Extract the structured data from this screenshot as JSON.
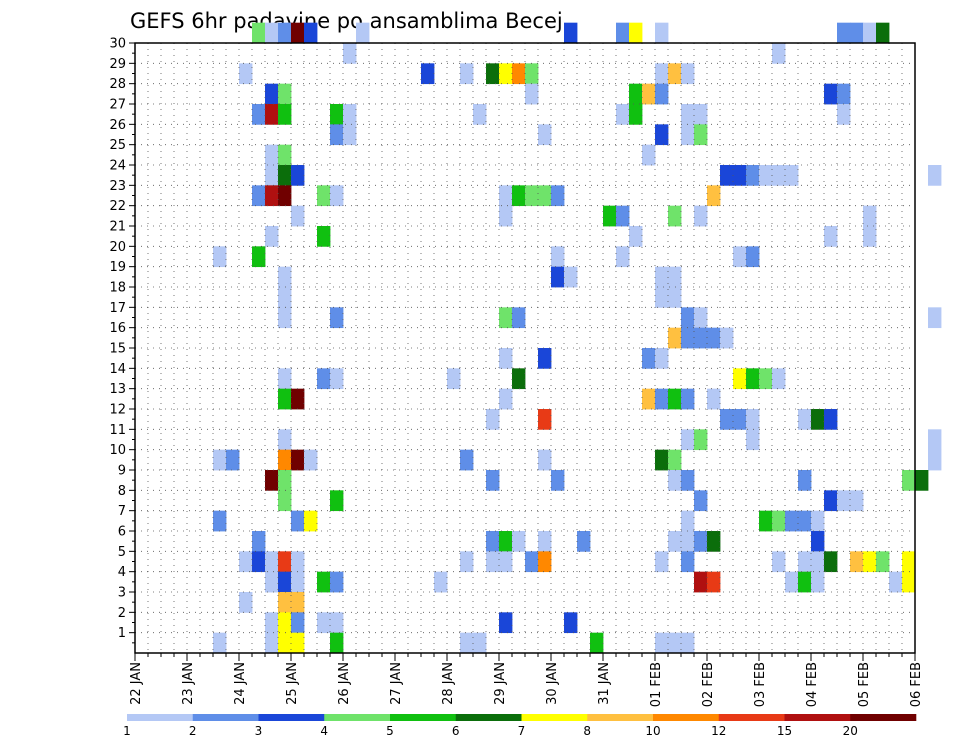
{
  "chart_data": {
    "type": "heatmap",
    "title": "GEFS 6hr padavine po ansamblima Becej",
    "xlabel": "",
    "ylabel": "",
    "x_start": "22 JAN 00Z",
    "x_step_hours": 6,
    "x_end": "06 FEB 00Z",
    "x_tick_labels": [
      "22 JAN",
      "23 JAN",
      "24 JAN",
      "25 JAN",
      "26 JAN",
      "27 JAN",
      "28 JAN",
      "29 JAN",
      "30 JAN",
      "31 JAN",
      "01 FEB",
      "02 FEB",
      "03 FEB",
      "04 FEB",
      "05 FEB",
      "06 FEB"
    ],
    "y_tick_labels": [
      "1",
      "2",
      "3",
      "4",
      "5",
      "6",
      "7",
      "8",
      "9",
      "10",
      "11",
      "12",
      "13",
      "14",
      "15",
      "16",
      "17",
      "18",
      "19",
      "20",
      "21",
      "22",
      "23",
      "24",
      "25",
      "26",
      "27",
      "28",
      "29",
      "30"
    ],
    "ylim": [
      0,
      30
    ],
    "grid": true,
    "colorbar": {
      "levels": [
        "1",
        "2",
        "3",
        "4",
        "5",
        "6",
        "7",
        "8",
        "10",
        "12",
        "15",
        "20"
      ],
      "colors": [
        "#b4c8f5",
        "#5f8ee8",
        "#1a46d8",
        "#6fe36a",
        "#10c010",
        "#0b6e0b",
        "#ffff00",
        "#ffc040",
        "#ff8800",
        "#e83a16",
        "#b01010",
        "#700000"
      ]
    },
    "cells": [
      {
        "m": 30,
        "c": [
          [
            9,
            3
          ],
          [
            10,
            0
          ],
          [
            11,
            1
          ],
          [
            12,
            11
          ],
          [
            13,
            2
          ],
          [
            17,
            0
          ],
          [
            33,
            2
          ],
          [
            37,
            1
          ],
          [
            38,
            6
          ],
          [
            40,
            0
          ],
          [
            54,
            1
          ],
          [
            55,
            1
          ],
          [
            56,
            0
          ],
          [
            57,
            5
          ]
        ]
      },
      {
        "m": 29,
        "c": [
          [
            16,
            0
          ],
          [
            49,
            0
          ]
        ]
      },
      {
        "m": 28,
        "c": [
          [
            8,
            0
          ],
          [
            22,
            2
          ],
          [
            25,
            0
          ],
          [
            27,
            5
          ],
          [
            28,
            6
          ],
          [
            29,
            8
          ],
          [
            30,
            3
          ],
          [
            40,
            0
          ],
          [
            41,
            7
          ],
          [
            42,
            0
          ]
        ]
      },
      {
        "m": 27,
        "c": [
          [
            10,
            2
          ],
          [
            11,
            3
          ],
          [
            30,
            0
          ],
          [
            38,
            4
          ],
          [
            39,
            7
          ],
          [
            40,
            1
          ],
          [
            53,
            2
          ],
          [
            54,
            1
          ]
        ]
      },
      {
        "m": 26,
        "c": [
          [
            9,
            1
          ],
          [
            10,
            10
          ],
          [
            11,
            4
          ],
          [
            15,
            4
          ],
          [
            16,
            0
          ],
          [
            26,
            0
          ],
          [
            37,
            0
          ],
          [
            38,
            4
          ],
          [
            42,
            0
          ],
          [
            43,
            0
          ],
          [
            54,
            0
          ]
        ]
      },
      {
        "m": 25,
        "c": [
          [
            15,
            1
          ],
          [
            16,
            0
          ],
          [
            31,
            0
          ],
          [
            40,
            2
          ],
          [
            42,
            0
          ],
          [
            43,
            3
          ]
        ]
      },
      {
        "m": 24,
        "c": [
          [
            10,
            0
          ],
          [
            11,
            3
          ],
          [
            39,
            0
          ]
        ]
      },
      {
        "m": 23,
        "c": [
          [
            10,
            0
          ],
          [
            11,
            5
          ],
          [
            12,
            2
          ],
          [
            45,
            2
          ],
          [
            46,
            2
          ],
          [
            47,
            1
          ],
          [
            48,
            0
          ],
          [
            49,
            0
          ],
          [
            50,
            0
          ],
          [
            61,
            0
          ]
        ]
      },
      {
        "m": 22,
        "c": [
          [
            9,
            1
          ],
          [
            10,
            10
          ],
          [
            11,
            11
          ],
          [
            14,
            3
          ],
          [
            15,
            0
          ],
          [
            28,
            0
          ],
          [
            29,
            4
          ],
          [
            30,
            3
          ],
          [
            31,
            3
          ],
          [
            32,
            1
          ],
          [
            44,
            7
          ]
        ]
      },
      {
        "m": 21,
        "c": [
          [
            12,
            0
          ],
          [
            28,
            0
          ],
          [
            36,
            4
          ],
          [
            37,
            1
          ],
          [
            41,
            3
          ],
          [
            43,
            0
          ],
          [
            56,
            0
          ]
        ]
      },
      {
        "m": 20,
        "c": [
          [
            10,
            0
          ],
          [
            14,
            4
          ],
          [
            38,
            0
          ],
          [
            53,
            0
          ],
          [
            56,
            0
          ]
        ]
      },
      {
        "m": 19,
        "c": [
          [
            6,
            0
          ],
          [
            9,
            4
          ],
          [
            32,
            0
          ],
          [
            37,
            0
          ],
          [
            46,
            0
          ],
          [
            47,
            1
          ]
        ]
      },
      {
        "m": 18,
        "c": [
          [
            11,
            0
          ],
          [
            32,
            2
          ],
          [
            33,
            0
          ],
          [
            40,
            0
          ],
          [
            41,
            0
          ]
        ]
      },
      {
        "m": 17,
        "c": [
          [
            11,
            0
          ],
          [
            40,
            0
          ],
          [
            41,
            0
          ]
        ]
      },
      {
        "m": 16,
        "c": [
          [
            11,
            0
          ],
          [
            15,
            1
          ],
          [
            28,
            3
          ],
          [
            29,
            1
          ],
          [
            42,
            1
          ],
          [
            43,
            0
          ],
          [
            61,
            0
          ]
        ]
      },
      {
        "m": 15,
        "c": [
          [
            41,
            7
          ],
          [
            42,
            1
          ],
          [
            43,
            1
          ],
          [
            44,
            1
          ],
          [
            45,
            0
          ]
        ]
      },
      {
        "m": 14,
        "c": [
          [
            28,
            0
          ],
          [
            31,
            2
          ],
          [
            39,
            1
          ],
          [
            40,
            0
          ]
        ]
      },
      {
        "m": 13,
        "c": [
          [
            11,
            0
          ],
          [
            14,
            1
          ],
          [
            15,
            0
          ],
          [
            24,
            0
          ],
          [
            29,
            5
          ],
          [
            46,
            6
          ],
          [
            47,
            4
          ],
          [
            48,
            3
          ],
          [
            49,
            0
          ]
        ]
      },
      {
        "m": 12,
        "c": [
          [
            11,
            4
          ],
          [
            12,
            11
          ],
          [
            28,
            0
          ],
          [
            39,
            7
          ],
          [
            40,
            1
          ],
          [
            41,
            4
          ],
          [
            42,
            1
          ],
          [
            44,
            0
          ]
        ]
      },
      {
        "m": 11,
        "c": [
          [
            27,
            0
          ],
          [
            31,
            9
          ],
          [
            45,
            1
          ],
          [
            46,
            1
          ],
          [
            47,
            0
          ],
          [
            51,
            0
          ],
          [
            52,
            5
          ],
          [
            53,
            2
          ]
        ]
      },
      {
        "m": 10,
        "c": [
          [
            11,
            0
          ],
          [
            42,
            0
          ],
          [
            43,
            3
          ],
          [
            47,
            0
          ],
          [
            61,
            0
          ]
        ]
      },
      {
        "m": 9,
        "c": [
          [
            6,
            0
          ],
          [
            7,
            1
          ],
          [
            11,
            8
          ],
          [
            12,
            11
          ],
          [
            13,
            0
          ],
          [
            25,
            1
          ],
          [
            31,
            0
          ],
          [
            40,
            5
          ],
          [
            41,
            3
          ],
          [
            61,
            0
          ]
        ]
      },
      {
        "m": 8,
        "c": [
          [
            10,
            11
          ],
          [
            11,
            3
          ],
          [
            27,
            1
          ],
          [
            32,
            1
          ],
          [
            41,
            0
          ],
          [
            42,
            1
          ],
          [
            51,
            1
          ],
          [
            59,
            3
          ],
          [
            60,
            5
          ]
        ]
      },
      {
        "m": 7,
        "c": [
          [
            11,
            3
          ],
          [
            15,
            4
          ],
          [
            43,
            1
          ],
          [
            53,
            2
          ],
          [
            54,
            0
          ],
          [
            55,
            0
          ]
        ]
      },
      {
        "m": 6,
        "c": [
          [
            6,
            1
          ],
          [
            12,
            1
          ],
          [
            13,
            6
          ],
          [
            42,
            0
          ],
          [
            48,
            4
          ],
          [
            49,
            3
          ],
          [
            50,
            1
          ],
          [
            51,
            1
          ],
          [
            52,
            0
          ]
        ]
      },
      {
        "m": 5,
        "c": [
          [
            9,
            1
          ],
          [
            27,
            1
          ],
          [
            28,
            4
          ],
          [
            29,
            0
          ],
          [
            31,
            0
          ],
          [
            34,
            1
          ],
          [
            41,
            0
          ],
          [
            42,
            0
          ],
          [
            43,
            1
          ],
          [
            44,
            5
          ],
          [
            52,
            2
          ]
        ]
      },
      {
        "m": 4,
        "c": [
          [
            8,
            0
          ],
          [
            9,
            2
          ],
          [
            10,
            0
          ],
          [
            11,
            9
          ],
          [
            12,
            0
          ],
          [
            25,
            0
          ],
          [
            27,
            0
          ],
          [
            28,
            0
          ],
          [
            30,
            1
          ],
          [
            31,
            8
          ],
          [
            40,
            0
          ],
          [
            42,
            1
          ],
          [
            49,
            0
          ],
          [
            51,
            0
          ],
          [
            52,
            0
          ],
          [
            53,
            5
          ],
          [
            55,
            7
          ],
          [
            56,
            6
          ],
          [
            57,
            3
          ],
          [
            59,
            6
          ]
        ]
      },
      {
        "m": 3,
        "c": [
          [
            10,
            0
          ],
          [
            11,
            2
          ],
          [
            12,
            0
          ],
          [
            14,
            4
          ],
          [
            15,
            1
          ],
          [
            23,
            0
          ],
          [
            43,
            10
          ],
          [
            44,
            9
          ],
          [
            50,
            0
          ],
          [
            51,
            4
          ],
          [
            52,
            0
          ],
          [
            58,
            0
          ],
          [
            59,
            6
          ]
        ]
      },
      {
        "m": 2,
        "c": [
          [
            8,
            0
          ],
          [
            11,
            7
          ],
          [
            12,
            7
          ]
        ]
      },
      {
        "m": 1,
        "c": [
          [
            10,
            0
          ],
          [
            11,
            6
          ],
          [
            12,
            1
          ],
          [
            14,
            0
          ],
          [
            15,
            0
          ],
          [
            28,
            2
          ],
          [
            33,
            2
          ]
        ]
      },
      {
        "m": 0,
        "c": [
          [
            6,
            0
          ],
          [
            10,
            0
          ],
          [
            11,
            6
          ],
          [
            12,
            6
          ],
          [
            15,
            4
          ],
          [
            25,
            0
          ],
          [
            26,
            0
          ],
          [
            35,
            4
          ],
          [
            40,
            0
          ],
          [
            41,
            0
          ],
          [
            42,
            0
          ]
        ]
      }
    ]
  }
}
